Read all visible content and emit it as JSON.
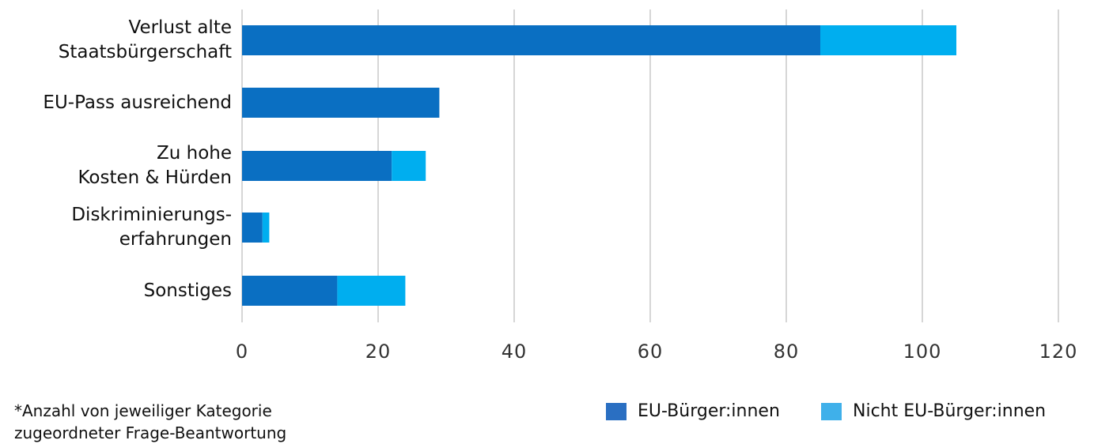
{
  "chart_data": {
    "type": "bar",
    "orientation": "horizontal",
    "stacked": true,
    "categories": [
      "Verlust alte\nStaatsbürgerschaft",
      "EU-Pass ausreichend",
      "Zu hohe\nKosten & Hürden",
      "Diskriminierungs-\nerfahrungen",
      "Sonstiges"
    ],
    "series": [
      {
        "name": "EU-Bürger:innen",
        "values": [
          85,
          29,
          22,
          3,
          14
        ],
        "color": "#0a6fc2"
      },
      {
        "name": "Nicht EU-Bürger:innen",
        "values": [
          20,
          0,
          5,
          1,
          10
        ],
        "color": "#00aeef"
      }
    ],
    "xlim": [
      0,
      120
    ],
    "xticks": [
      "0",
      "20",
      "40",
      "60",
      "80",
      "100",
      "120"
    ],
    "grid": true,
    "legend_position": "bottom-right"
  },
  "footnote": "*Anzahl von jeweiliger Kategorie\n zugeordneter Frage-Beantwortung",
  "legend": [
    {
      "label": "EU-Bürger:innen",
      "color": "#2a6fc2"
    },
    {
      "label": "Nicht EU-Bürger:innen",
      "color": "#3fb0ea"
    }
  ]
}
